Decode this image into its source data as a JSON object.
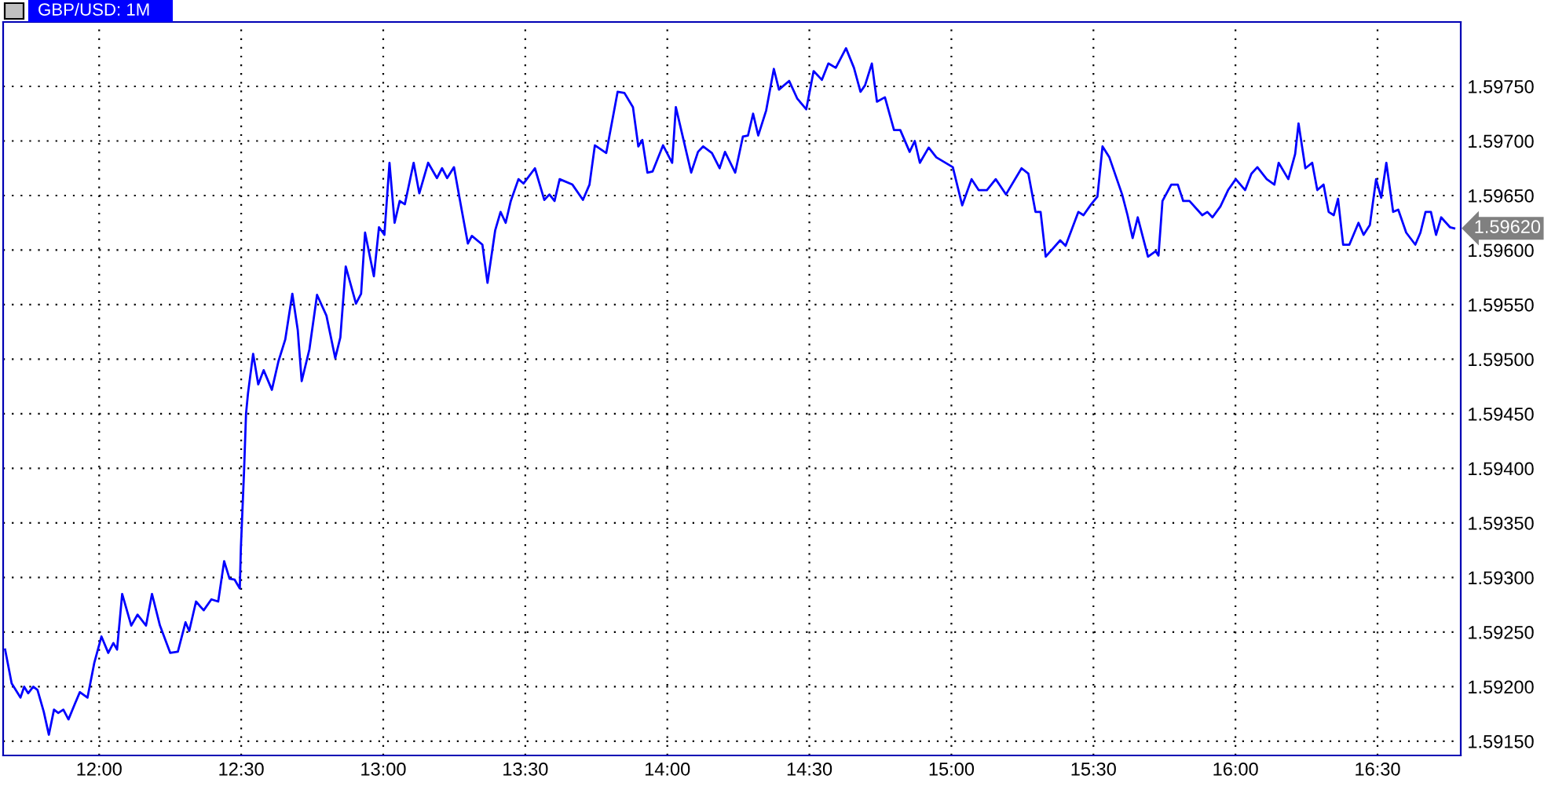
{
  "chart_data": {
    "type": "line",
    "title": "GBP/USD: 1M",
    "x": [
      11.669,
      11.692,
      11.723,
      11.736,
      11.75,
      11.768,
      11.783,
      11.805,
      11.823,
      11.841,
      11.856,
      11.874,
      11.892,
      11.914,
      11.932,
      11.959,
      11.983,
      12.008,
      12.032,
      12.05,
      12.063,
      12.081,
      12.113,
      12.135,
      12.165,
      12.186,
      12.214,
      12.25,
      12.277,
      12.304,
      12.317,
      12.341,
      12.368,
      12.395,
      12.419,
      12.44,
      12.459,
      12.477,
      12.495,
      12.499,
      12.51,
      12.517,
      12.524,
      12.542,
      12.56,
      12.579,
      12.608,
      12.631,
      12.655,
      12.68,
      12.699,
      12.713,
      12.74,
      12.767,
      12.8,
      12.831,
      12.849,
      12.868,
      12.904,
      12.922,
      12.936,
      12.967,
      12.985,
      13.004,
      13.022,
      13.04,
      13.058,
      13.076,
      13.107,
      13.127,
      13.158,
      13.189,
      13.207,
      13.225,
      13.249,
      13.276,
      13.298,
      13.312,
      13.349,
      13.367,
      13.394,
      13.413,
      13.431,
      13.449,
      13.476,
      13.494,
      13.534,
      13.567,
      13.585,
      13.603,
      13.621,
      13.666,
      13.703,
      13.726,
      13.745,
      13.785,
      13.825,
      13.849,
      13.879,
      13.898,
      13.912,
      13.93,
      13.948,
      13.985,
      14.017,
      14.03,
      14.057,
      14.084,
      14.108,
      14.126,
      14.157,
      14.184,
      14.203,
      14.239,
      14.266,
      14.284,
      14.302,
      14.32,
      14.348,
      14.375,
      14.393,
      14.429,
      14.457,
      14.489,
      14.515,
      14.544,
      14.567,
      14.593,
      14.629,
      14.657,
      14.68,
      14.696,
      14.72,
      14.738,
      14.766,
      14.798,
      14.82,
      14.853,
      14.871,
      14.889,
      14.92,
      14.947,
      15.005,
      15.038,
      15.071,
      15.096,
      15.125,
      15.156,
      15.192,
      15.247,
      15.271,
      15.296,
      15.314,
      15.332,
      15.383,
      15.402,
      15.447,
      15.465,
      15.492,
      15.514,
      15.532,
      15.556,
      15.601,
      15.62,
      15.638,
      15.656,
      15.692,
      15.719,
      15.729,
      15.743,
      15.774,
      15.797,
      15.816,
      15.838,
      15.883,
      15.901,
      15.919,
      15.947,
      15.974,
      16.001,
      16.034,
      16.056,
      16.077,
      16.11,
      16.137,
      16.152,
      16.186,
      16.21,
      16.222,
      16.246,
      16.27,
      16.288,
      16.31,
      16.328,
      16.346,
      16.361,
      16.379,
      16.401,
      16.433,
      16.451,
      16.473,
      16.495,
      16.513,
      16.531,
      16.555,
      16.573,
      16.601,
      16.633,
      16.651,
      16.669,
      16.688,
      16.706,
      16.724,
      16.755,
      16.77
    ],
    "series": [
      {
        "color": "#0000ff",
        "values": [
          1.59234,
          1.59203,
          1.5919,
          1.592,
          1.59194,
          1.592,
          1.59197,
          1.59177,
          1.59156,
          1.59179,
          1.59176,
          1.59179,
          1.5917,
          1.59184,
          1.59195,
          1.5919,
          1.59222,
          1.59246,
          1.59231,
          1.5924,
          1.59234,
          1.59285,
          1.59256,
          1.59266,
          1.59256,
          1.59285,
          1.59256,
          1.59231,
          1.59232,
          1.59259,
          1.59251,
          1.59278,
          1.5927,
          1.5928,
          1.59278,
          1.59315,
          1.59299,
          1.59298,
          1.5929,
          1.59328,
          1.59397,
          1.5945,
          1.59469,
          1.59505,
          1.59477,
          1.5949,
          1.59472,
          1.59498,
          1.59518,
          1.5956,
          1.59527,
          1.5948,
          1.59509,
          1.59559,
          1.5954,
          1.59501,
          1.5952,
          1.59585,
          1.59551,
          1.5956,
          1.59616,
          1.59576,
          1.59621,
          1.59614,
          1.5968,
          1.59625,
          1.59645,
          1.59642,
          1.5968,
          1.59652,
          1.5968,
          1.59666,
          1.59675,
          1.59666,
          1.59676,
          1.59637,
          1.59606,
          1.59613,
          1.59605,
          1.5957,
          1.59618,
          1.59635,
          1.59625,
          1.59645,
          1.59665,
          1.59661,
          1.59675,
          1.59646,
          1.59651,
          1.59645,
          1.59665,
          1.5966,
          1.59646,
          1.5966,
          1.59696,
          1.59689,
          1.59745,
          1.59744,
          1.59731,
          1.59695,
          1.59701,
          1.59671,
          1.59672,
          1.59696,
          1.5968,
          1.59731,
          1.59701,
          1.59671,
          1.5969,
          1.59695,
          1.59689,
          1.59675,
          1.5969,
          1.59671,
          1.59704,
          1.59705,
          1.59725,
          1.59705,
          1.59728,
          1.59766,
          1.59747,
          1.59755,
          1.59739,
          1.59729,
          1.59764,
          1.59756,
          1.59771,
          1.59767,
          1.59785,
          1.59767,
          1.59745,
          1.59751,
          1.59771,
          1.59736,
          1.5974,
          1.5971,
          1.5971,
          1.5969,
          1.597,
          1.5968,
          1.59694,
          1.59685,
          1.59676,
          1.59641,
          1.59665,
          1.59655,
          1.59655,
          1.59665,
          1.59651,
          1.59675,
          1.5967,
          1.59635,
          1.59635,
          1.59594,
          1.59609,
          1.59604,
          1.59635,
          1.59632,
          1.59642,
          1.59649,
          1.59695,
          1.59685,
          1.59651,
          1.59632,
          1.59611,
          1.5963,
          1.59594,
          1.59599,
          1.59595,
          1.59645,
          1.5966,
          1.5966,
          1.59645,
          1.59645,
          1.59632,
          1.59635,
          1.5963,
          1.5964,
          1.59655,
          1.59665,
          1.59655,
          1.5967,
          1.59676,
          1.59665,
          1.5966,
          1.5968,
          1.59665,
          1.59688,
          1.59716,
          1.59675,
          1.5968,
          1.59655,
          1.5966,
          1.59635,
          1.59632,
          1.59647,
          1.59605,
          1.59605,
          1.59625,
          1.59614,
          1.59623,
          1.59665,
          1.59648,
          1.5968,
          1.59635,
          1.59637,
          1.59616,
          1.59605,
          1.59616,
          1.59635,
          1.59635,
          1.59614,
          1.5963,
          1.59621,
          1.5962
        ]
      }
    ],
    "xlim": [
      11.662,
      16.793
    ],
    "ylim": [
      1.59137,
      1.59809
    ],
    "xticks": [
      {
        "value": 12,
        "label": "12:00"
      },
      {
        "value": 12.5,
        "label": "12:30"
      },
      {
        "value": 13,
        "label": "13:00"
      },
      {
        "value": 13.5,
        "label": "13:30"
      },
      {
        "value": 14,
        "label": "14:00"
      },
      {
        "value": 14.5,
        "label": "14:30"
      },
      {
        "value": 15,
        "label": "15:00"
      },
      {
        "value": 15.5,
        "label": "15:30"
      },
      {
        "value": 16,
        "label": "16:00"
      },
      {
        "value": 16.5,
        "label": "16:30"
      }
    ],
    "yticks": [
      {
        "value": 1.5915,
        "label": "1.59150"
      },
      {
        "value": 1.592,
        "label": "1.59200"
      },
      {
        "value": 1.5925,
        "label": "1.59250"
      },
      {
        "value": 1.593,
        "label": "1.59300"
      },
      {
        "value": 1.5935,
        "label": "1.59350"
      },
      {
        "value": 1.594,
        "label": "1.59400"
      },
      {
        "value": 1.5945,
        "label": "1.59450"
      },
      {
        "value": 1.595,
        "label": "1.59500"
      },
      {
        "value": 1.5955,
        "label": "1.59550"
      },
      {
        "value": 1.596,
        "label": "1.59600"
      },
      {
        "value": 1.5965,
        "label": "1.59650"
      },
      {
        "value": 1.597,
        "label": "1.59700"
      },
      {
        "value": 1.5975,
        "label": "1.59750"
      }
    ],
    "grid": true,
    "line_style": "solid",
    "annotations": [
      {
        "text": "1.59620",
        "x": 16.77,
        "y": 1.5962
      }
    ]
  }
}
